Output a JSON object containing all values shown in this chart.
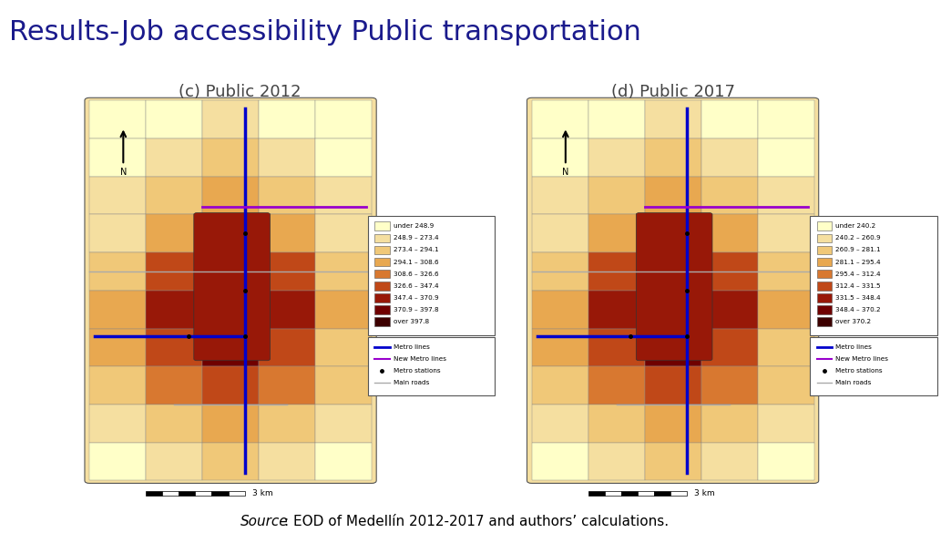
{
  "title": "Results-Job accessibility Public transportation",
  "title_color": "#1a1a8c",
  "title_fontsize": 22,
  "background_color": "#ffffff",
  "subtitle_left": "(c) Public 2012",
  "subtitle_right": "(d) Public 2017",
  "subtitle_fontsize": 13,
  "legend_left_labels": [
    "under 248.9",
    "248.9 – 273.4",
    "273.4 – 294.1",
    "294.1 – 308.6",
    "308.6 – 326.6",
    "326.6 – 347.4",
    "347.4 – 370.9",
    "370.9 – 397.8",
    "over 397.8"
  ],
  "legend_right_labels": [
    "under 240.2",
    "240.2 – 260.9",
    "260.9 – 281.1",
    "281.1 – 295.4",
    "295.4 – 312.4",
    "312.4 – 331.5",
    "331.5 – 348.4",
    "348.4 – 370.2",
    "over 370.2"
  ],
  "legend_colors": [
    "#ffffc8",
    "#f5dfa0",
    "#f0c878",
    "#e8a850",
    "#d87830",
    "#c04818",
    "#981808",
    "#700000",
    "#3d0000"
  ],
  "line_legend": [
    {
      "label": "Metro lines",
      "color": "#0000cc",
      "lw": 2
    },
    {
      "label": "New Metro lines",
      "color": "#9900cc",
      "lw": 1.5
    },
    {
      "label": "Metro stations",
      "color": "#000000",
      "marker": true
    },
    {
      "label": "Main roads",
      "color": "#aaaaaa",
      "lw": 1
    }
  ],
  "source_italic": "Source",
  "source_rest": ": EOD of Medellín 2012-2017 and authors’ calculations.",
  "source_fontsize": 11
}
